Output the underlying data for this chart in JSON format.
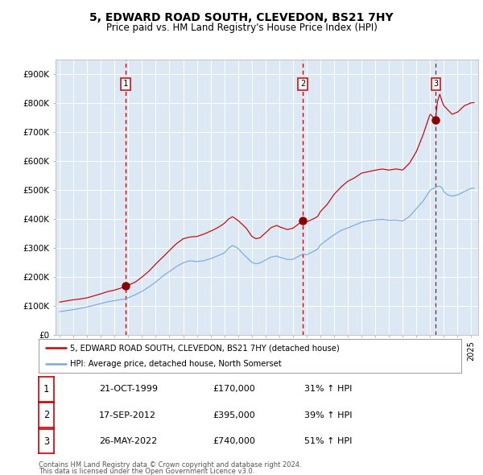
{
  "title": "5, EDWARD ROAD SOUTH, CLEVEDON, BS21 7HY",
  "subtitle": "Price paid vs. HM Land Registry's House Price Index (HPI)",
  "background_color": "#ffffff",
  "plot_bg_color": "#dce9f5",
  "ylim": [
    0,
    950000
  ],
  "yticks": [
    0,
    100000,
    200000,
    300000,
    400000,
    500000,
    600000,
    700000,
    800000,
    900000
  ],
  "ytick_labels": [
    "£0",
    "£100K",
    "£200K",
    "£300K",
    "£400K",
    "£500K",
    "£600K",
    "£700K",
    "£800K",
    "£900K"
  ],
  "xlim_start": 1994.7,
  "xlim_end": 2025.5,
  "xticks": [
    1995,
    1996,
    1997,
    1998,
    1999,
    2000,
    2001,
    2002,
    2003,
    2004,
    2005,
    2006,
    2007,
    2008,
    2009,
    2010,
    2011,
    2012,
    2013,
    2014,
    2015,
    2016,
    2017,
    2018,
    2019,
    2020,
    2021,
    2022,
    2023,
    2024,
    2025
  ],
  "sale1_x": 1999.81,
  "sale1_y": 170000,
  "sale1_label": "1",
  "sale1_date": "21-OCT-1999",
  "sale1_price": "£170,000",
  "sale1_hpi": "31% ↑ HPI",
  "sale2_x": 2012.72,
  "sale2_y": 395000,
  "sale2_label": "2",
  "sale2_date": "17-SEP-2012",
  "sale2_price": "£395,000",
  "sale2_hpi": "39% ↑ HPI",
  "sale3_x": 2022.41,
  "sale3_y": 740000,
  "sale3_label": "3",
  "sale3_date": "26-MAY-2022",
  "sale3_price": "£740,000",
  "sale3_hpi": "51% ↑ HPI",
  "red_line_color": "#cc0000",
  "blue_line_color": "#7aaadd",
  "vline_color": "#cc0000",
  "marker_color": "#880000",
  "legend_red_label": "5, EDWARD ROAD SOUTH, CLEVEDON, BS21 7HY (detached house)",
  "legend_blue_label": "HPI: Average price, detached house, North Somerset",
  "footer1": "Contains HM Land Registry data © Crown copyright and database right 2024.",
  "footer2": "This data is licensed under the Open Government Licence v3.0."
}
